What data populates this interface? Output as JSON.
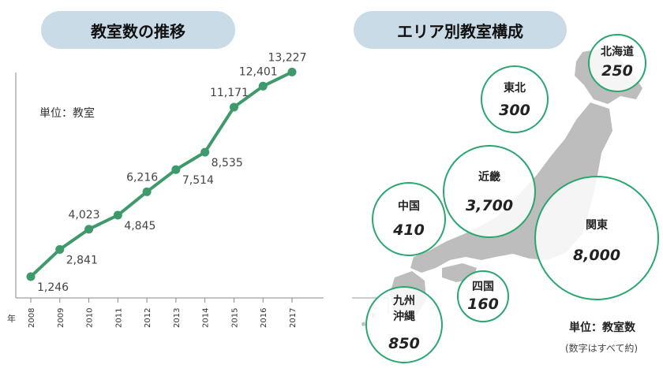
{
  "left_panel": {
    "title": "教室数の推移",
    "unit_label": "単位：教室",
    "year_marker": "年"
  },
  "right_panel": {
    "title": "エリア別教室構成",
    "unit_label": "単位：教室数",
    "note": "(数字はすべて約)"
  },
  "colors": {
    "line": "#3f9a6b",
    "circle": "#2aa66f",
    "map": "#bdbdbd",
    "pill": "#c9dbe6"
  },
  "chart_data": [
    {
      "type": "line",
      "title": "教室数の推移",
      "ylabel": "単位：教室",
      "categories": [
        "2008",
        "2009",
        "2010",
        "2011",
        "2012",
        "2013",
        "2014",
        "2015",
        "2016",
        "2017"
      ],
      "values": [
        1246,
        2841,
        4023,
        4845,
        6216,
        7514,
        8535,
        11171,
        12401,
        13227
      ],
      "labels": [
        "1,246",
        "2,841",
        "4,023",
        "4,845",
        "6,216",
        "7,514",
        "8,535",
        "11,171",
        "12,401",
        "13,227"
      ],
      "label_pos": [
        "below",
        "below",
        "above",
        "below",
        "above",
        "below",
        "below",
        "above",
        "above",
        "above"
      ],
      "ylim": [
        0,
        15000
      ],
      "grid": false
    },
    {
      "type": "bubble-map",
      "title": "エリア別教室構成",
      "regions": [
        {
          "name": "北海道",
          "value": 250,
          "label": "250"
        },
        {
          "name": "東北",
          "value": 300,
          "label": "300"
        },
        {
          "name": "近畿",
          "value": 3700,
          "label": "3,700"
        },
        {
          "name": "中国",
          "value": 410,
          "label": "410"
        },
        {
          "name": "関東",
          "value": 8000,
          "label": "8,000"
        },
        {
          "name": "四国",
          "value": 160,
          "label": "160"
        },
        {
          "name": "九州沖縄",
          "value": 850,
          "label": "850",
          "name_lines": [
            "九州",
            "沖縄"
          ]
        }
      ]
    }
  ]
}
